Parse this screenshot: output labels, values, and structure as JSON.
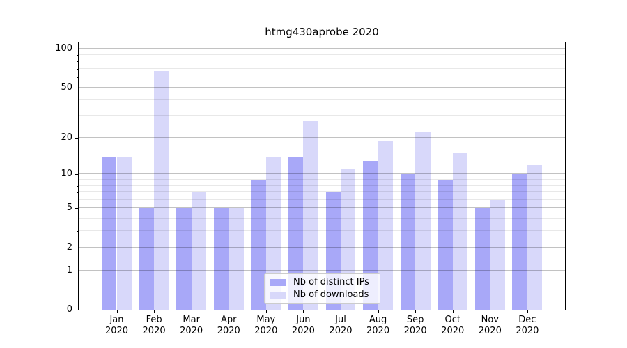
{
  "chart_data": {
    "type": "bar",
    "title": "htmg430aprobe 2020",
    "categories": [
      "Jan 2020",
      "Feb 2020",
      "Mar 2020",
      "Apr 2020",
      "May 2020",
      "Jun 2020",
      "Jul 2020",
      "Aug 2020",
      "Sep 2020",
      "Oct 2020",
      "Nov 2020",
      "Dec 2020"
    ],
    "series": [
      {
        "name": "Nb of distinct IPs",
        "color": "#a8a8f8",
        "values": [
          14,
          5,
          5,
          5,
          9,
          14,
          7,
          13,
          10,
          9,
          5,
          10
        ]
      },
      {
        "name": "Nb of downloads",
        "color": "#d8d8fa",
        "values": [
          14,
          67,
          7,
          5,
          14,
          27,
          11,
          19,
          22,
          15,
          6,
          12
        ]
      }
    ],
    "yscale": "log1p",
    "y_major_ticks": [
      100,
      50,
      20,
      10,
      5,
      2,
      1,
      0
    ],
    "y_minor_ticks": [
      3,
      4,
      6,
      7,
      8,
      9,
      30,
      40,
      60,
      70,
      80,
      90
    ],
    "ylim": [
      0,
      112
    ],
    "xlabel": "",
    "ylabel": "",
    "grid": "horizontal",
    "legend_position": "lower center"
  },
  "colors": {
    "background": "#ffffff",
    "spine": "#000000",
    "text": "#000000",
    "major_grid": "rgba(0,0,0,0.24)",
    "minor_grid": "rgba(0,0,0,0.09)",
    "legend_border": "#cccccc",
    "legend_bg": "rgba(255,255,255,0.8)"
  }
}
